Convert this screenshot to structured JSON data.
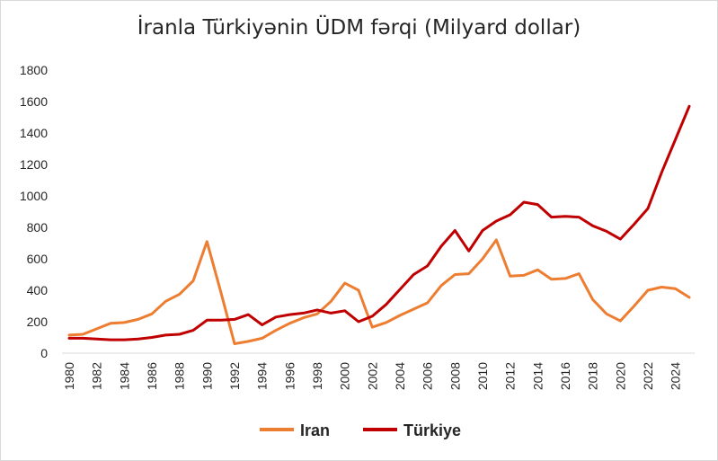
{
  "chart_data": {
    "type": "line",
    "title": "İranla Türkiyənin ÜDM fərqi (Milyard dollar)",
    "xlabel": "",
    "ylabel": "",
    "ylim": [
      0,
      1800
    ],
    "y_ticks": [
      0,
      200,
      400,
      600,
      800,
      1000,
      1200,
      1400,
      1600,
      1800
    ],
    "x_tick_labels": [
      "1980",
      "1982",
      "1984",
      "1986",
      "1988",
      "1990",
      "1992",
      "1994",
      "1996",
      "1998",
      "2000",
      "2002",
      "2004",
      "2006",
      "2008",
      "2010",
      "2012",
      "2014",
      "2016",
      "2018",
      "2020",
      "2022",
      "2024"
    ],
    "x": [
      1980,
      1981,
      1982,
      1983,
      1984,
      1985,
      1986,
      1987,
      1988,
      1989,
      1990,
      1991,
      1992,
      1993,
      1994,
      1995,
      1996,
      1997,
      1998,
      1999,
      2000,
      2001,
      2002,
      2003,
      2004,
      2005,
      2006,
      2007,
      2008,
      2009,
      2010,
      2011,
      2012,
      2013,
      2014,
      2015,
      2016,
      2017,
      2018,
      2019,
      2020,
      2021,
      2022,
      2023,
      2024,
      2025
    ],
    "series": [
      {
        "name": "Iran",
        "color": "#ed7d31",
        "values": [
          115,
          120,
          155,
          190,
          195,
          215,
          250,
          330,
          375,
          460,
          710,
          390,
          60,
          75,
          95,
          145,
          190,
          225,
          250,
          330,
          445,
          400,
          165,
          195,
          240,
          280,
          320,
          430,
          500,
          505,
          600,
          720,
          490,
          495,
          530,
          470,
          475,
          505,
          340,
          250,
          205,
          300,
          400,
          420,
          410,
          355
        ]
      },
      {
        "name": "Türkiye",
        "color": "#c00000",
        "values": [
          95,
          95,
          90,
          85,
          85,
          90,
          100,
          115,
          120,
          145,
          210,
          210,
          215,
          245,
          180,
          230,
          245,
          255,
          275,
          255,
          270,
          200,
          235,
          310,
          405,
          500,
          555,
          680,
          780,
          650,
          780,
          840,
          880,
          960,
          945,
          865,
          870,
          865,
          810,
          775,
          725,
          820,
          920,
          1150,
          1360,
          1570
        ]
      }
    ],
    "legend": {
      "position": "bottom",
      "entries": [
        "Iran",
        "Türkiye"
      ]
    },
    "grid": false
  }
}
